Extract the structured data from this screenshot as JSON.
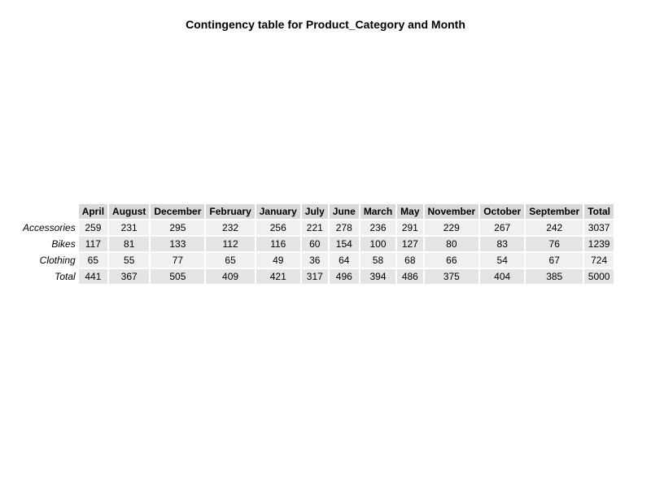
{
  "chart_data": {
    "type": "table",
    "title": "Contingency table for Product_Category and Month",
    "columns": [
      "April",
      "August",
      "December",
      "February",
      "January",
      "July",
      "June",
      "March",
      "May",
      "November",
      "October",
      "September",
      "Total"
    ],
    "rows": [
      {
        "label": "Accessories",
        "values": [
          "259",
          "231",
          "295",
          "232",
          "256",
          "221",
          "278",
          "236",
          "291",
          "229",
          "267",
          "242",
          "3037"
        ]
      },
      {
        "label": "Bikes",
        "values": [
          "117",
          "81",
          "133",
          "112",
          "116",
          "60",
          "154",
          "100",
          "127",
          "80",
          "83",
          "76",
          "1239"
        ]
      },
      {
        "label": "Clothing",
        "values": [
          "65",
          "55",
          "77",
          "65",
          "49",
          "36",
          "64",
          "58",
          "68",
          "66",
          "54",
          "67",
          "724"
        ]
      },
      {
        "label": "Total",
        "values": [
          "441",
          "367",
          "505",
          "409",
          "421",
          "317",
          "496",
          "394",
          "486",
          "375",
          "404",
          "385",
          "5000"
        ]
      }
    ]
  }
}
